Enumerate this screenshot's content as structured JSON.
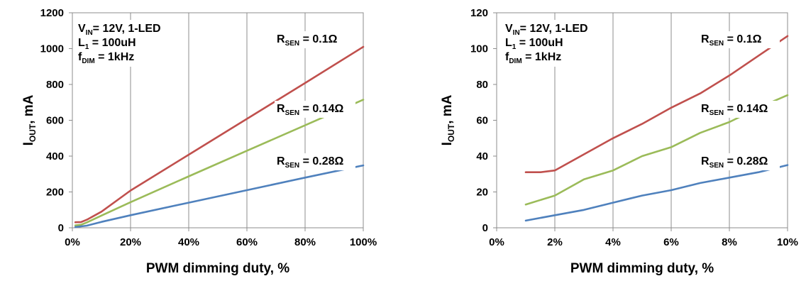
{
  "chart_data": [
    {
      "type": "line",
      "xlabel": "PWM dimming duty, %",
      "ylabel": {
        "main": "I",
        "sub": "OUT",
        "rest": ", mA"
      },
      "xlim": [
        0,
        100
      ],
      "ylim": [
        0,
        1200
      ],
      "xticks": [
        0,
        20,
        40,
        60,
        80,
        100
      ],
      "xtick_labels": [
        "0%",
        "20%",
        "40%",
        "60%",
        "80%",
        "100%"
      ],
      "yticks": [
        0,
        200,
        400,
        600,
        800,
        1000,
        1200
      ],
      "ytick_labels": [
        "0",
        "200",
        "400",
        "600",
        "800",
        "1000",
        "1200"
      ],
      "grid": "vertical",
      "conditions": [
        {
          "main": "V",
          "sub": "IN",
          "rest": "= 12V, 1-LED"
        },
        {
          "main": "L",
          "sub": "1",
          "rest": " = 100uH"
        },
        {
          "main": "f",
          "sub": "DIM",
          "rest": " = 1kHz"
        }
      ],
      "series": [
        {
          "name": {
            "main": "R",
            "sub": "SEN",
            "rest": " = 0.1Ω"
          },
          "color": "#c0504d",
          "x": [
            1,
            3,
            5,
            10,
            20,
            40,
            60,
            80,
            100
          ],
          "y": [
            31,
            32,
            45,
            90,
            208,
            408,
            608,
            808,
            1010
          ]
        },
        {
          "name": {
            "main": "R",
            "sub": "SEN",
            "rest": " = 0.14Ω"
          },
          "color": "#9bbb59",
          "x": [
            1,
            3,
            5,
            10,
            20,
            40,
            60,
            80,
            100
          ],
          "y": [
            13,
            17,
            30,
            68,
            143,
            287,
            430,
            572,
            715
          ]
        },
        {
          "name": {
            "main": "R",
            "sub": "SEN",
            "rest": " = 0.28Ω"
          },
          "color": "#4f81bd",
          "x": [
            1,
            3,
            5,
            10,
            20,
            40,
            60,
            80,
            100
          ],
          "y": [
            4,
            8,
            12,
            33,
            70,
            140,
            210,
            280,
            348
          ]
        }
      ]
    },
    {
      "type": "line",
      "xlabel": "PWM dimming duty, %",
      "ylabel": {
        "main": "I",
        "sub": "OUT",
        "rest": ", mA"
      },
      "xlim": [
        0,
        10
      ],
      "ylim": [
        0,
        120
      ],
      "xticks": [
        0,
        2,
        4,
        6,
        8,
        10
      ],
      "xtick_labels": [
        "0%",
        "2%",
        "4%",
        "6%",
        "8%",
        "10%"
      ],
      "yticks": [
        0,
        20,
        40,
        60,
        80,
        100,
        120
      ],
      "ytick_labels": [
        "0",
        "20",
        "40",
        "60",
        "80",
        "100",
        "120"
      ],
      "grid": "vertical",
      "conditions": [
        {
          "main": "V",
          "sub": "IN",
          "rest": "= 12V, 1-LED"
        },
        {
          "main": "L",
          "sub": "1",
          "rest": " = 100uH"
        },
        {
          "main": "f",
          "sub": "DIM",
          "rest": " = 1kHz"
        }
      ],
      "series": [
        {
          "name": {
            "main": "R",
            "sub": "SEN",
            "rest": " = 0.1Ω"
          },
          "color": "#c0504d",
          "x": [
            1,
            1.5,
            2,
            3,
            4,
            5,
            6,
            7,
            8,
            9,
            10
          ],
          "y": [
            31,
            31,
            32,
            41,
            50,
            58,
            67,
            75,
            85,
            96,
            107
          ]
        },
        {
          "name": {
            "main": "R",
            "sub": "SEN",
            "rest": " = 0.14Ω"
          },
          "color": "#9bbb59",
          "x": [
            1,
            2,
            3,
            4,
            5,
            6,
            7,
            8,
            9,
            10
          ],
          "y": [
            13,
            18,
            27,
            32,
            40,
            45,
            53,
            59,
            67,
            74
          ]
        },
        {
          "name": {
            "main": "R",
            "sub": "SEN",
            "rest": " = 0.28Ω"
          },
          "color": "#4f81bd",
          "x": [
            1,
            2,
            3,
            4,
            5,
            6,
            7,
            8,
            9,
            10
          ],
          "y": [
            4,
            7,
            10,
            14,
            18,
            21,
            25,
            28,
            31,
            35
          ]
        }
      ]
    }
  ]
}
